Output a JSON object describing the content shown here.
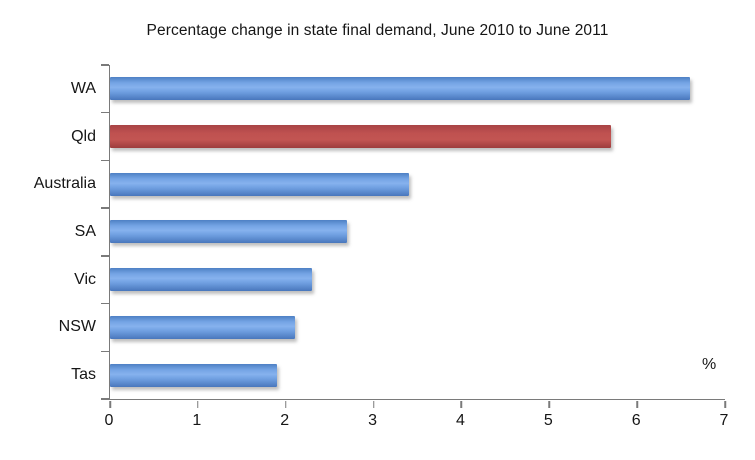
{
  "chart_data": {
    "type": "bar",
    "orientation": "horizontal",
    "title": "Percentage change in state final demand, June 2010 to June 2011",
    "categories": [
      "WA",
      "Qld",
      "Australia",
      "SA",
      "Vic",
      "NSW",
      "Tas"
    ],
    "values": [
      6.6,
      5.7,
      3.4,
      2.7,
      2.3,
      2.1,
      1.9
    ],
    "bar_colors": [
      "blue",
      "red",
      "blue",
      "blue",
      "blue",
      "blue",
      "blue"
    ],
    "highlight_category": "Qld",
    "unit_label": "%",
    "xlabel": "%",
    "ylabel": "",
    "xlim": [
      0,
      7
    ],
    "x_ticks": [
      0,
      1,
      2,
      3,
      4,
      5,
      6,
      7
    ],
    "grid": false,
    "legend": false,
    "colors": {
      "bar_blue": "#6d9ce0",
      "bar_red": "#bf4e4c",
      "axis": "#7a7a7a",
      "text": "#1a1a1a",
      "background": "#ffffff"
    }
  }
}
